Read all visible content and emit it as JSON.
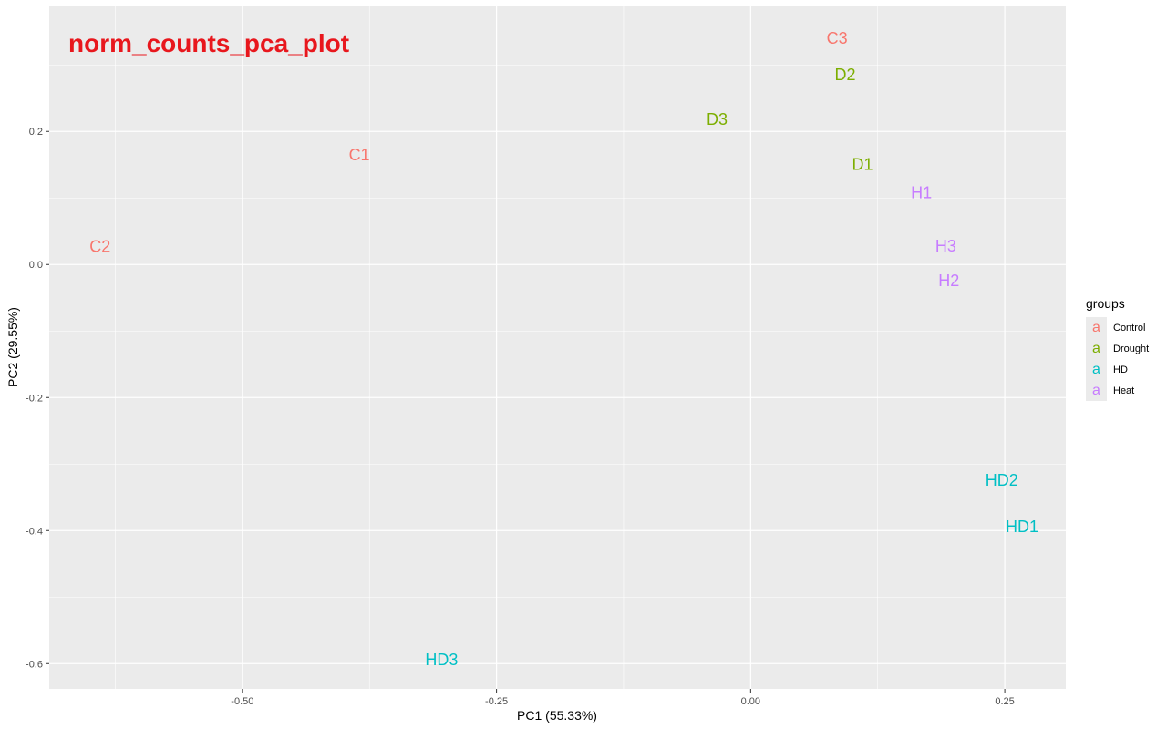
{
  "chart_data": {
    "type": "scatter",
    "title": "norm_counts_pca_plot",
    "xlabel": "PC1 (55.33%)",
    "ylabel": "PC2 (29.55%)",
    "xlim": [
      -0.69,
      0.31
    ],
    "ylim": [
      -0.638,
      0.388
    ],
    "xticks": [
      -0.5,
      -0.25,
      0.0,
      0.25
    ],
    "xtick_labels": [
      "-0.50",
      "-0.25",
      "0.00",
      "0.25"
    ],
    "yticks": [
      -0.6,
      -0.4,
      -0.2,
      0.0,
      0.2
    ],
    "ytick_labels": [
      "-0.6",
      "-0.4",
      "-0.2",
      "0.0",
      "0.2"
    ],
    "grid": true,
    "legend": {
      "title": "groups",
      "position": "right",
      "key_glyph": "a",
      "entries": [
        {
          "name": "Control",
          "color": "#F8766D"
        },
        {
          "name": "Drought",
          "color": "#7CAE00"
        },
        {
          "name": "HD",
          "color": "#00BFC4"
        },
        {
          "name": "Heat",
          "color": "#C77CFF"
        }
      ]
    },
    "points": [
      {
        "label": "C1",
        "group": "Control",
        "x": -0.385,
        "y": 0.165
      },
      {
        "label": "C2",
        "group": "Control",
        "x": -0.64,
        "y": 0.027
      },
      {
        "label": "C3",
        "group": "Control",
        "x": 0.085,
        "y": 0.34
      },
      {
        "label": "D1",
        "group": "Drought",
        "x": 0.11,
        "y": 0.15
      },
      {
        "label": "D2",
        "group": "Drought",
        "x": 0.093,
        "y": 0.285
      },
      {
        "label": "D3",
        "group": "Drought",
        "x": -0.033,
        "y": 0.218
      },
      {
        "label": "H1",
        "group": "Heat",
        "x": 0.168,
        "y": 0.108
      },
      {
        "label": "H2",
        "group": "Heat",
        "x": 0.195,
        "y": -0.024
      },
      {
        "label": "H3",
        "group": "Heat",
        "x": 0.192,
        "y": 0.028
      },
      {
        "label": "HD1",
        "group": "HD",
        "x": 0.267,
        "y": -0.394
      },
      {
        "label": "HD2",
        "group": "HD",
        "x": 0.247,
        "y": -0.324
      },
      {
        "label": "HD3",
        "group": "HD",
        "x": -0.304,
        "y": -0.594
      }
    ]
  }
}
